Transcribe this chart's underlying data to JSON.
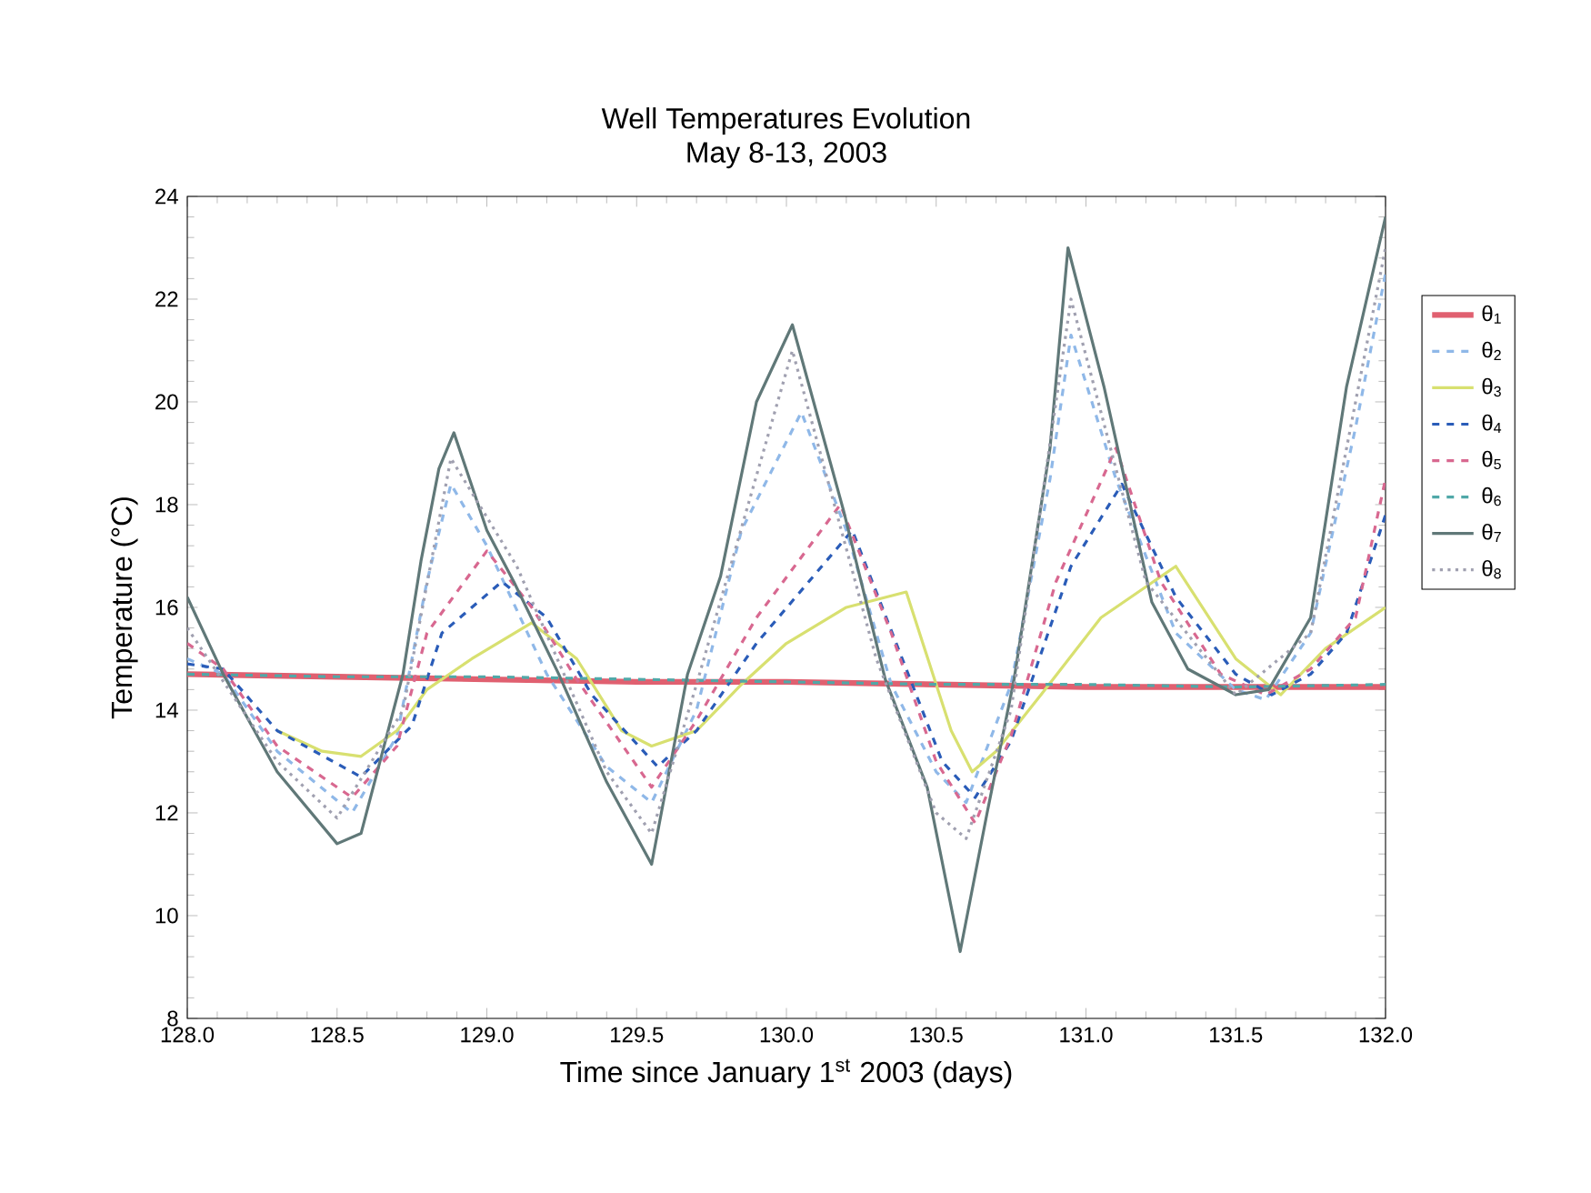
{
  "chart_data": {
    "type": "line",
    "title": "Well Temperatures Evolution",
    "subtitle": "May 8-13, 2003",
    "xlabel": "Time since January 1$^{st}$ 2003 (days)",
    "ylabel": "Temperature (°C)",
    "xlim": [
      128,
      132
    ],
    "ylim": [
      8,
      24
    ],
    "xticks": [
      {
        "value": 128,
        "label": "128.0"
      },
      {
        "value": 128.5,
        "label": "128.5"
      },
      {
        "value": 129,
        "label": "129.0"
      },
      {
        "value": 129.5,
        "label": "129.5"
      },
      {
        "value": 130,
        "label": "130.0"
      },
      {
        "value": 130.5,
        "label": "130.5"
      },
      {
        "value": 131,
        "label": "131.0"
      },
      {
        "value": 131.5,
        "label": "131.5"
      },
      {
        "value": 132,
        "label": "132.0"
      }
    ],
    "yticks": [
      8,
      10,
      12,
      14,
      16,
      18,
      20,
      22,
      24
    ],
    "grid": false,
    "legend": "right",
    "marker": "none",
    "series": [
      {
        "name": "θ$_{1}$",
        "color": "#e06070",
        "line_style": "solid",
        "x": [
          128.0,
          128.5,
          129.0,
          129.5,
          130.0,
          130.5,
          131.0,
          131.5,
          132.0
        ],
        "values": [
          14.7,
          14.65,
          14.6,
          14.55,
          14.55,
          14.5,
          14.45,
          14.45,
          14.45
        ]
      },
      {
        "name": "θ$_{2}$",
        "color": "#8fb8e8",
        "line_style": "dashed",
        "x": [
          128.0,
          128.12,
          128.3,
          128.55,
          128.7,
          128.8,
          128.88,
          129.0,
          129.2,
          129.4,
          129.55,
          129.7,
          129.85,
          130.05,
          130.2,
          130.35,
          130.5,
          130.6,
          130.75,
          130.88,
          130.95,
          131.1,
          131.3,
          131.5,
          131.6,
          131.75,
          131.9,
          132.0
        ],
        "values": [
          15.0,
          14.7,
          13.2,
          12.0,
          13.5,
          16.5,
          18.4,
          17.2,
          14.7,
          12.9,
          12.2,
          14.0,
          17.5,
          19.8,
          17.5,
          14.5,
          12.8,
          12.2,
          14.5,
          18.5,
          21.3,
          18.5,
          15.5,
          14.4,
          14.2,
          15.5,
          19.5,
          22.5
        ]
      },
      {
        "name": "θ$_{3}$",
        "color": "#d8e070",
        "line_style": "solid",
        "x": [
          128.3,
          128.45,
          128.58,
          128.7,
          128.8,
          128.95,
          129.15,
          129.3,
          129.45,
          129.55,
          129.7,
          129.85,
          130.0,
          130.2,
          130.4,
          130.55,
          130.62,
          130.7,
          130.85,
          131.05,
          131.3,
          131.5,
          131.65,
          131.8,
          132.0
        ],
        "values": [
          13.6,
          13.2,
          13.1,
          13.6,
          14.4,
          15.0,
          15.7,
          15.0,
          13.6,
          13.3,
          13.6,
          14.5,
          15.3,
          16.0,
          16.3,
          13.6,
          12.8,
          13.2,
          14.3,
          15.8,
          16.8,
          15.0,
          14.3,
          15.2,
          16.0
        ]
      },
      {
        "name": "θ$_{4}$",
        "color": "#2a5cb8",
        "line_style": "dashed",
        "x": [
          128.0,
          128.12,
          128.3,
          128.58,
          128.75,
          128.85,
          129.05,
          129.2,
          129.35,
          129.57,
          129.7,
          129.9,
          130.22,
          130.4,
          130.52,
          130.63,
          130.75,
          130.95,
          131.12,
          131.3,
          131.5,
          131.62,
          131.75,
          131.87,
          132.0
        ],
        "values": [
          14.9,
          14.8,
          13.6,
          12.7,
          13.7,
          15.5,
          16.5,
          15.8,
          14.3,
          12.9,
          13.6,
          15.3,
          17.5,
          14.8,
          13.0,
          12.3,
          13.4,
          16.8,
          18.4,
          16.2,
          14.7,
          14.3,
          14.7,
          15.5,
          17.8
        ]
      },
      {
        "name": "θ$_{5}$",
        "color": "#d86890",
        "line_style": "dashed",
        "x": [
          128.0,
          128.12,
          128.3,
          128.55,
          128.7,
          128.8,
          129.0,
          129.15,
          129.3,
          129.55,
          129.7,
          129.9,
          130.18,
          130.35,
          130.5,
          130.63,
          130.75,
          130.9,
          131.1,
          131.25,
          131.45,
          131.6,
          131.75,
          131.9,
          132.0
        ],
        "values": [
          15.3,
          14.8,
          13.3,
          12.3,
          13.3,
          15.5,
          17.1,
          16.0,
          14.6,
          12.5,
          13.8,
          15.8,
          18.0,
          15.5,
          13.0,
          11.8,
          13.5,
          16.5,
          19.1,
          16.5,
          14.7,
          14.3,
          14.8,
          15.8,
          18.5
        ]
      },
      {
        "name": "θ$_{6}$",
        "color": "#50a8a8",
        "line_style": "dashed",
        "x": [
          128.0,
          128.5,
          129.0,
          129.5,
          130.0,
          130.5,
          131.0,
          131.5,
          132.0
        ],
        "values": [
          14.7,
          14.65,
          14.65,
          14.6,
          14.55,
          14.5,
          14.5,
          14.45,
          14.5
        ]
      },
      {
        "name": "θ$_{7}$",
        "color": "#607878",
        "line_style": "solid",
        "x": [
          128.0,
          128.12,
          128.3,
          128.5,
          128.58,
          128.72,
          128.78,
          128.84,
          128.89,
          129.0,
          129.09,
          129.24,
          129.4,
          129.55,
          129.67,
          129.78,
          129.9,
          130.02,
          130.19,
          130.33,
          130.47,
          130.58,
          130.67,
          130.76,
          130.88,
          130.94,
          131.06,
          131.22,
          131.34,
          131.5,
          131.61,
          131.75,
          131.87,
          132.0
        ],
        "values": [
          16.2,
          14.7,
          12.8,
          11.4,
          11.6,
          14.7,
          16.9,
          18.7,
          19.4,
          17.5,
          16.5,
          14.7,
          12.6,
          11.0,
          14.7,
          16.6,
          20.0,
          21.5,
          17.9,
          14.6,
          12.5,
          9.3,
          12.0,
          14.6,
          19.1,
          23.0,
          20.3,
          16.1,
          14.8,
          14.3,
          14.4,
          15.8,
          20.3,
          23.6
        ]
      },
      {
        "name": "θ$_{8}$",
        "color": "#a0a0b0",
        "line_style": "dotted",
        "x": [
          128.0,
          128.3,
          128.5,
          128.72,
          128.88,
          129.1,
          129.4,
          129.55,
          129.7,
          130.02,
          130.3,
          130.5,
          130.6,
          130.75,
          130.95,
          131.2,
          131.5,
          131.75,
          132.0
        ],
        "values": [
          15.6,
          13.0,
          11.9,
          14.0,
          18.9,
          16.8,
          12.8,
          11.6,
          14.5,
          21.0,
          15.0,
          12.0,
          11.5,
          14.0,
          22.0,
          16.5,
          14.3,
          15.5,
          23.0
        ]
      }
    ]
  }
}
